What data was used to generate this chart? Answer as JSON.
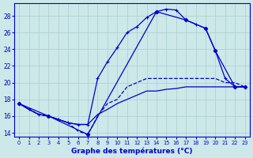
{
  "title": "Graphe des températures (°C)",
  "bg_color": "#cce8e8",
  "grid_color": "#aacfcf",
  "line_color": "#0000cc",
  "xlim": [
    -0.5,
    23.5
  ],
  "ylim": [
    13.5,
    29.5
  ],
  "yticks": [
    14,
    16,
    18,
    20,
    22,
    24,
    26,
    28
  ],
  "xticks": [
    0,
    1,
    2,
    3,
    4,
    5,
    6,
    7,
    8,
    9,
    10,
    11,
    12,
    13,
    14,
    15,
    16,
    17,
    18,
    19,
    20,
    21,
    22,
    23
  ],
  "curve_upper_x": [
    0,
    1,
    2,
    3,
    4,
    5,
    6,
    7,
    8,
    9,
    10,
    11,
    12,
    13,
    14,
    15,
    16,
    17,
    18,
    19,
    20,
    21,
    22,
    23
  ],
  "curve_upper_y": [
    17.5,
    16.8,
    16.2,
    16.0,
    15.6,
    15.2,
    15.0,
    15.0,
    20.5,
    22.5,
    24.2,
    26.0,
    26.7,
    27.8,
    28.5,
    28.8,
    28.7,
    27.5,
    27.0,
    26.5,
    23.8,
    20.5,
    19.5,
    19.5
  ],
  "curve_lower_x": [
    0,
    1,
    2,
    3,
    4,
    5,
    6,
    7,
    8,
    9,
    10,
    11,
    12,
    13,
    14,
    15,
    16,
    17,
    18,
    19,
    20,
    21,
    22,
    23
  ],
  "curve_lower_y": [
    17.5,
    16.8,
    16.2,
    16.0,
    15.6,
    15.2,
    15.0,
    15.0,
    16.2,
    16.8,
    17.5,
    18.0,
    18.5,
    19.0,
    19.0,
    19.2,
    19.3,
    19.5,
    19.5,
    19.5,
    19.5,
    19.5,
    19.5,
    19.5
  ],
  "curve_dashed_x": [
    0,
    1,
    2,
    3,
    4,
    5,
    6,
    7,
    8,
    9,
    10,
    11,
    12,
    13,
    14,
    15,
    16,
    17,
    18,
    19,
    20,
    21,
    22,
    23
  ],
  "curve_dashed_y": [
    17.5,
    16.8,
    16.2,
    16.0,
    15.6,
    15.2,
    14.2,
    13.8,
    16.0,
    17.5,
    18.0,
    19.5,
    20.0,
    20.5,
    20.5,
    20.5,
    20.5,
    20.5,
    20.5,
    20.5,
    20.5,
    20.0,
    20.0,
    19.5
  ],
  "curve_poly_x": [
    0,
    3,
    7,
    14,
    17,
    19,
    20,
    22,
    23
  ],
  "curve_poly_y": [
    17.5,
    16.0,
    13.8,
    28.5,
    27.5,
    26.5,
    23.8,
    19.5,
    19.5
  ]
}
